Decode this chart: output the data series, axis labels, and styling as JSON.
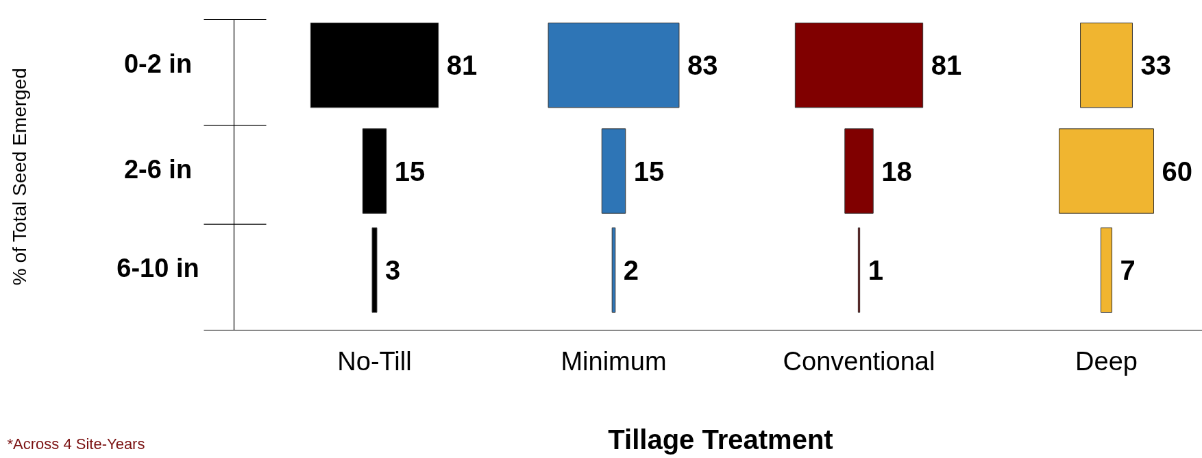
{
  "chart_data": {
    "type": "other",
    "xlabel": "Tillage Treatment",
    "ylabel": "% of Total Seed Emerged",
    "categories": [
      "No-Till",
      "Minimum",
      "Conventional",
      "Deep"
    ],
    "series": [
      {
        "name": "0-2 in",
        "colors": [
          "#000000",
          "#2e75b6",
          "#800000",
          "#f0b530"
        ],
        "values": [
          81,
          83,
          81,
          33
        ]
      },
      {
        "name": "2-6 in",
        "colors": [
          "#000000",
          "#2e75b6",
          "#800000",
          "#f0b530"
        ],
        "values": [
          15,
          15,
          18,
          60
        ]
      },
      {
        "name": "6-10 in",
        "colors": [
          "#000000",
          "#2e75b6",
          "#800000",
          "#f0b530"
        ],
        "values": [
          3,
          2,
          1,
          7
        ]
      }
    ],
    "data_labels": true,
    "annotations": [
      "*Across 4 Site-Years"
    ]
  }
}
